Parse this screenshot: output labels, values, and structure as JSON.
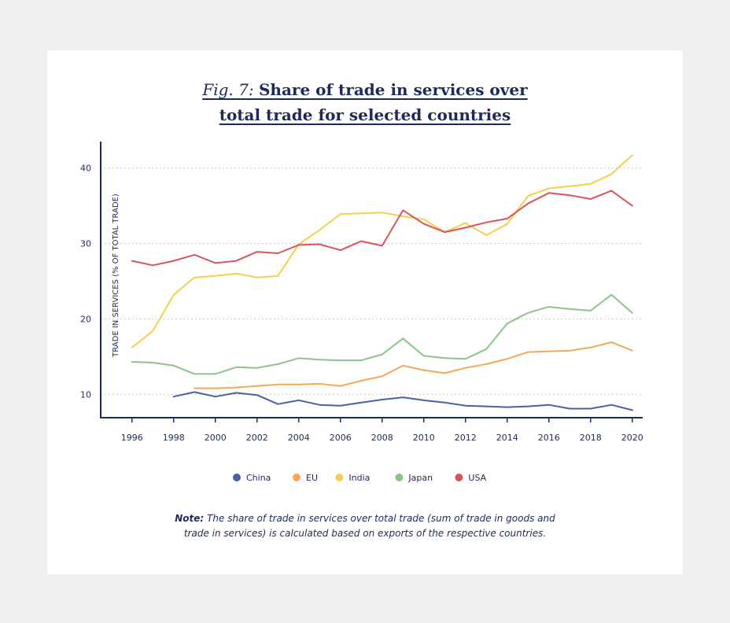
{
  "figure": {
    "fig_label": "Fig. 7:",
    "title_line1": "Share of trade in services over",
    "title_line2": "total trade for selected countries"
  },
  "note": {
    "label": "Note:",
    "line1": "The share of trade in services over total trade (sum of trade in goods and",
    "line2": "trade in services) is calculated based on exports of the respective countries."
  },
  "chart_data": {
    "type": "line",
    "ylabel": "TRADE IN SERVICES (% OF TOTAL TRADE)",
    "xlabel": "",
    "x": [
      1996,
      1997,
      1998,
      1999,
      2000,
      2001,
      2002,
      2003,
      2004,
      2005,
      2006,
      2007,
      2008,
      2009,
      2010,
      2011,
      2012,
      2013,
      2014,
      2015,
      2016,
      2017,
      2018,
      2019,
      2020
    ],
    "xticks": [
      1996,
      1998,
      2000,
      2002,
      2004,
      2006,
      2008,
      2010,
      2012,
      2014,
      2016,
      2018,
      2020
    ],
    "yticks": [
      10,
      20,
      30,
      40
    ],
    "xlim": [
      1994.5,
      2020.5
    ],
    "ylim": [
      6.9,
      43.3
    ],
    "grid": "horizontal dotted",
    "legend": "bottom-center",
    "series": [
      {
        "name": "China",
        "color": "#4a5fa8",
        "values": [
          null,
          null,
          9.7,
          10.3,
          9.7,
          10.2,
          9.9,
          8.7,
          9.2,
          8.6,
          8.5,
          8.9,
          9.3,
          9.6,
          9.2,
          8.9,
          8.5,
          8.4,
          8.3,
          8.4,
          8.6,
          8.1,
          8.1,
          8.6,
          7.9
        ]
      },
      {
        "name": "EU",
        "color": "#f5a65b",
        "values": [
          null,
          null,
          null,
          10.8,
          10.8,
          10.9,
          11.1,
          11.3,
          11.3,
          11.4,
          11.1,
          11.8,
          12.4,
          13.8,
          13.2,
          12.8,
          13.5,
          14.0,
          14.7,
          15.6,
          15.7,
          15.8,
          16.2,
          16.9,
          15.8
        ]
      },
      {
        "name": "India",
        "color": "#f2d04e",
        "values": [
          16.2,
          18.4,
          23.2,
          25.5,
          25.7,
          26.0,
          25.5,
          25.7,
          29.9,
          31.8,
          33.9,
          34.0,
          34.1,
          33.6,
          33.2,
          31.5,
          32.7,
          31.1,
          32.6,
          36.3,
          37.3,
          37.6,
          37.9,
          39.2,
          41.7
        ]
      },
      {
        "name": "Japan",
        "color": "#8cc38a",
        "values": [
          14.3,
          14.2,
          13.8,
          12.7,
          12.7,
          13.6,
          13.5,
          14.0,
          14.8,
          14.6,
          14.5,
          14.5,
          15.3,
          17.4,
          15.1,
          14.8,
          14.7,
          16.0,
          19.4,
          20.8,
          21.6,
          21.3,
          21.1,
          23.2,
          20.8
        ]
      },
      {
        "name": "USA",
        "color": "#d9545c",
        "values": [
          27.7,
          27.1,
          27.7,
          28.5,
          27.4,
          27.7,
          28.9,
          28.7,
          29.8,
          29.9,
          29.1,
          30.3,
          29.7,
          34.4,
          32.6,
          31.5,
          32.1,
          32.8,
          33.3,
          35.3,
          36.7,
          36.4,
          35.9,
          37.0,
          35.0
        ]
      }
    ]
  }
}
